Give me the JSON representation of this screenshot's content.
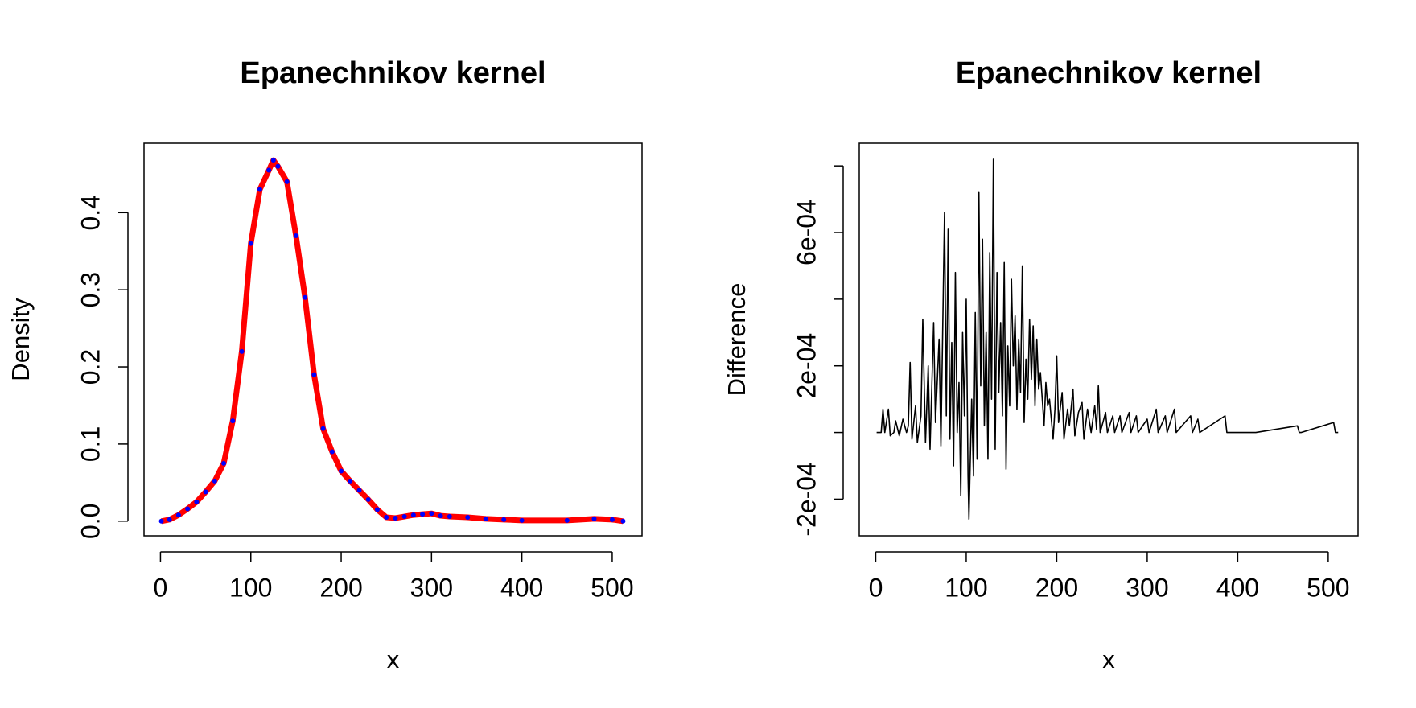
{
  "chart_data": [
    {
      "type": "line",
      "title": "Epanechnikov kernel",
      "xlabel": "x",
      "ylabel": "Density",
      "x": [
        1,
        10,
        20,
        30,
        40,
        50,
        60,
        70,
        80,
        90,
        100,
        110,
        120,
        125,
        130,
        140,
        150,
        160,
        170,
        180,
        190,
        200,
        210,
        220,
        230,
        240,
        250,
        260,
        270,
        280,
        290,
        300,
        310,
        320,
        340,
        360,
        380,
        400,
        450,
        480,
        500,
        512
      ],
      "series": [
        {
          "color": "#ff0000",
          "marker_color": "#0000ff",
          "values": [
            0,
            0.002,
            0.008,
            0.016,
            0.025,
            0.038,
            0.052,
            0.075,
            0.13,
            0.22,
            0.36,
            0.43,
            0.455,
            0.468,
            0.46,
            0.44,
            0.37,
            0.29,
            0.19,
            0.12,
            0.09,
            0.065,
            0.052,
            0.04,
            0.028,
            0.015,
            0.005,
            0.004,
            0.006,
            0.008,
            0.009,
            0.01,
            0.007,
            0.006,
            0.005,
            0.003,
            0.002,
            0.001,
            0.001,
            0.003,
            0.002,
            0
          ]
        }
      ],
      "xlim": [
        -18.2,
        533
      ],
      "xticks": [
        0,
        100,
        200,
        300,
        400,
        500
      ],
      "ylim": [
        -0.019,
        0.49
      ],
      "yticks": [
        {
          "value": 0,
          "label": "0.0"
        },
        0.1,
        0.2,
        0.3,
        0.4
      ]
    },
    {
      "type": "line",
      "title": "Epanechnikov kernel",
      "xlabel": "x",
      "ylabel": "Difference",
      "x": [
        1,
        6,
        8,
        10,
        14,
        16,
        20,
        22,
        26,
        30,
        34,
        36,
        38,
        40,
        44,
        46,
        50,
        52,
        55,
        58,
        60,
        64,
        66,
        70,
        72,
        76,
        78,
        80,
        82,
        84,
        86,
        88,
        90,
        92,
        94,
        96,
        98,
        100,
        102,
        103,
        106,
        108,
        110,
        112,
        114,
        116,
        118,
        120,
        122,
        124,
        126,
        128,
        130,
        132,
        134,
        136,
        138,
        140,
        142,
        144,
        146,
        148,
        150,
        152,
        154,
        156,
        158,
        160,
        162,
        164,
        166,
        168,
        170,
        172,
        174,
        176,
        178,
        180,
        182,
        186,
        188,
        190,
        192,
        196,
        198,
        200,
        202,
        206,
        208,
        212,
        214,
        218,
        220,
        224,
        228,
        230,
        234,
        238,
        242,
        244,
        246,
        248,
        254,
        256,
        262,
        264,
        270,
        272,
        280,
        282,
        288,
        290,
        300,
        302,
        310,
        312,
        320,
        322,
        330,
        332,
        348,
        350,
        356,
        358,
        386,
        388,
        420,
        466,
        468,
        470,
        506,
        508,
        511
      ],
      "series": [
        {
          "color": "#000000",
          "values": [
            0,
            0,
            7e-05,
            0,
            7e-05,
            -1e-05,
            0,
            3.5e-05,
            -1e-05,
            4e-05,
            0,
            2e-05,
            0.00021,
            -2e-05,
            8e-05,
            -3e-05,
            5e-05,
            0.00034,
            -3e-05,
            0.0002,
            -5e-05,
            0.00033,
            3e-05,
            0.00028,
            -4e-05,
            0.00066,
            5e-05,
            0.00061,
            -2e-05,
            0.00027,
            -0.0001,
            0.00048,
            0,
            0.00015,
            -0.00019,
            0.0003,
            5e-05,
            0.0004,
            -0.00013,
            -0.00026,
            0.0001,
            -0.00013,
            0.00036,
            -8e-05,
            0.00072,
            0.00014,
            0.00058,
            2e-05,
            0.0003,
            -8e-05,
            0.00054,
            0.0001,
            0.00082,
            -5e-05,
            0.00048,
            0.00012,
            0.00033,
            5e-05,
            0.00051,
            -0.00011,
            0.00026,
            8e-05,
            0.00046,
            0.0002,
            0.00035,
            7e-05,
            0.00028,
            0.00012,
            0.0005,
            3e-05,
            0.00022,
            0.0001,
            0.00034,
            0.00016,
            0.00032,
            8e-05,
            0.00028,
            0.00013,
            0.00018,
            2e-05,
            0.00015,
            8e-05,
            0.0001,
            -2e-05,
            7e-05,
            0.00023,
            3e-05,
            0.00012,
            -2e-05,
            7e-05,
            2e-05,
            0.00013,
            -1e-05,
            6e-05,
            9e-05,
            -2e-05,
            7e-05,
            0,
            8e-05,
            1e-05,
            0.00014,
            0,
            6e-05,
            0,
            5e-05,
            0,
            5e-05,
            0,
            6e-05,
            0,
            5e-05,
            0,
            4e-05,
            0,
            7e-05,
            0,
            5e-05,
            0,
            7e-05,
            0,
            5e-05,
            0,
            4e-05,
            0,
            5e-05,
            0,
            0,
            2e-05,
            0,
            0,
            3e-05,
            0,
            0
          ]
        }
      ],
      "xlim": [
        -18.2,
        533
      ],
      "xticks": [
        0,
        100,
        200,
        300,
        400,
        500
      ],
      "ylim": [
        -0.00031,
        0.000868
      ],
      "yticks": [
        {
          "value": -0.0002,
          "label": "-2e-04"
        },
        {
          "value": 0,
          "label": null
        },
        {
          "value": 0.0002,
          "label": "2e-04"
        },
        {
          "value": 0.0004,
          "label": null
        },
        {
          "value": 0.0006,
          "label": "6e-04"
        },
        {
          "value": 0.0008,
          "label": null
        }
      ]
    }
  ]
}
